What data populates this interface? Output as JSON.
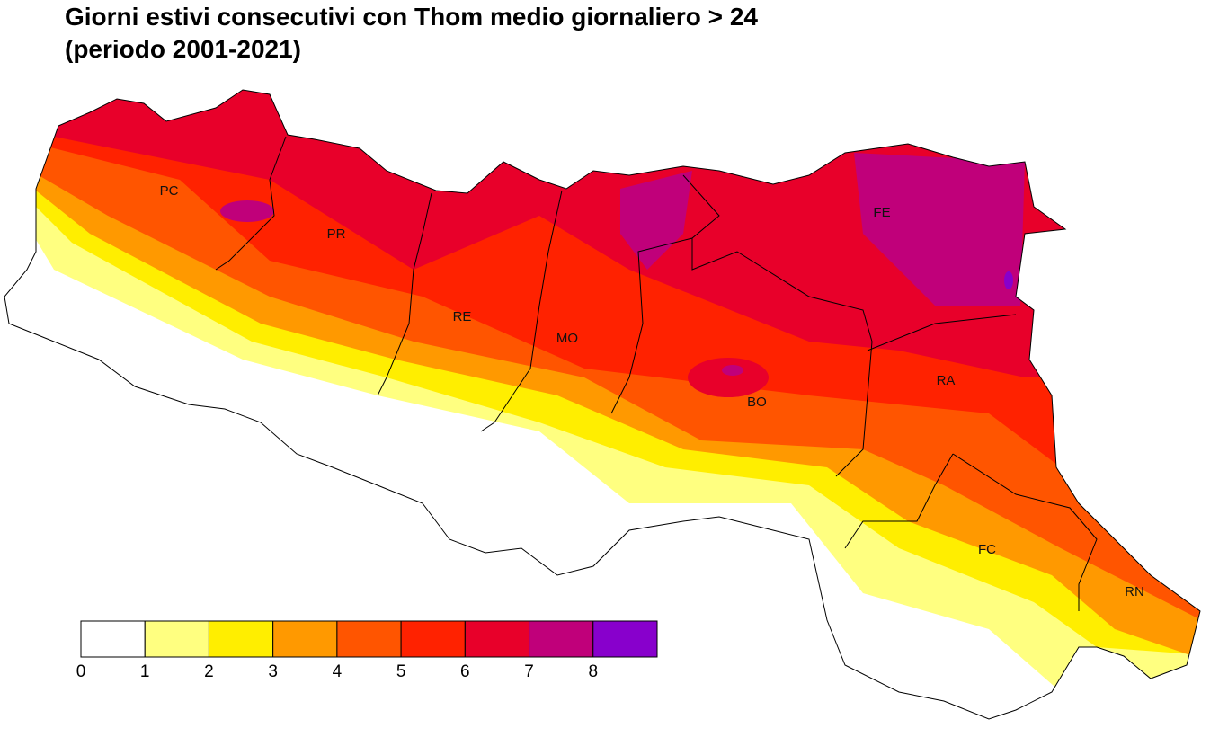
{
  "title": [
    "Giorni estivi consecutivi con Thom medio giornaliero > 24",
    "(periodo 2001-2021)"
  ],
  "provinces": [
    "PC",
    "PR",
    "RE",
    "MO",
    "BO",
    "FE",
    "RA",
    "FC",
    "RN"
  ],
  "legend": {
    "colors": [
      "#ffffff",
      "#ffff80",
      "#ffee00",
      "#ff9900",
      "#ff5500",
      "#ff2200",
      "#e8002a",
      "#c0007a",
      "#8800cc"
    ],
    "ticks": [
      0,
      1,
      2,
      3,
      4,
      5,
      6,
      7,
      8
    ]
  }
}
